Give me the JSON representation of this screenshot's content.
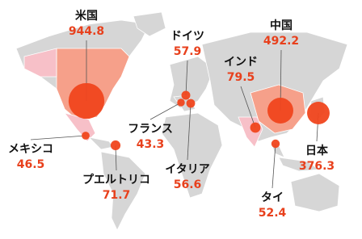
{
  "map": {
    "points": [
      {
        "name": "米国",
        "value": 944.8
      },
      {
        "name": "ドイツ",
        "value": 57.9
      },
      {
        "name": "中国",
        "value": 492.2
      },
      {
        "name": "インド",
        "value": 79.5
      },
      {
        "name": "日本",
        "value": 376.3
      },
      {
        "name": "タイ",
        "value": 52.4
      },
      {
        "name": "イタリア",
        "value": 56.6
      },
      {
        "name": "フランス",
        "value": 43.3
      },
      {
        "name": "メキシコ",
        "value": 46.5
      },
      {
        "name": "プエルトリコ",
        "value": 71.7
      }
    ]
  }
}
